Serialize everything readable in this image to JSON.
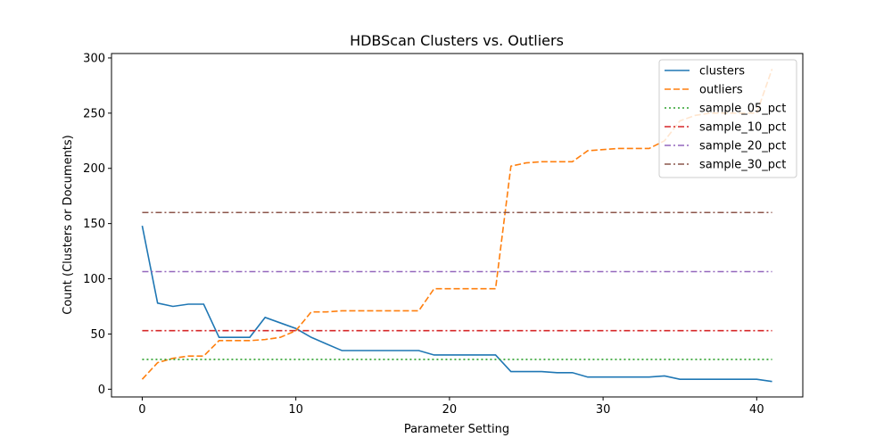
{
  "chart_data": {
    "type": "line",
    "title": "HDBScan Clusters vs. Outliers",
    "xlabel": "Parameter Setting",
    "ylabel": "Count (Clusters or Documents)",
    "xlim": [
      -2,
      43
    ],
    "ylim": [
      -7,
      304
    ],
    "xticks": [
      0,
      10,
      20,
      30,
      40
    ],
    "yticks": [
      0,
      50,
      100,
      150,
      200,
      250,
      300
    ],
    "legend_position": "top-right",
    "grid": false,
    "x": [
      0,
      1,
      2,
      3,
      4,
      5,
      6,
      7,
      8,
      9,
      10,
      11,
      12,
      13,
      14,
      15,
      16,
      17,
      18,
      19,
      20,
      21,
      22,
      23,
      24,
      25,
      26,
      27,
      28,
      29,
      30,
      31,
      32,
      33,
      34,
      35,
      36,
      37,
      38,
      39,
      40,
      41
    ],
    "series": [
      {
        "name": "clusters",
        "color": "#1f77b4",
        "dash": "solid",
        "values": [
          148,
          78,
          75,
          77,
          77,
          47,
          47,
          47,
          65,
          60,
          55,
          47,
          41,
          35,
          35,
          35,
          35,
          35,
          35,
          31,
          31,
          31,
          31,
          31,
          16,
          16,
          16,
          15,
          15,
          11,
          11,
          11,
          11,
          11,
          12,
          9,
          9,
          9,
          9,
          9,
          9,
          7
        ]
      },
      {
        "name": "outliers",
        "color": "#ff7f0e",
        "dash": "dashed",
        "values": [
          9,
          24,
          28,
          30,
          30,
          44,
          44,
          44,
          45,
          47,
          53,
          70,
          70,
          71,
          71,
          71,
          71,
          71,
          71,
          91,
          91,
          91,
          91,
          91,
          202,
          205,
          206,
          206,
          206,
          216,
          217,
          218,
          218,
          218,
          225,
          243,
          248,
          250,
          250,
          250,
          250,
          290
        ]
      },
      {
        "name": "sample_05_pct",
        "color": "#2ca02c",
        "dash": "dotted",
        "values": [
          27,
          27,
          27,
          27,
          27,
          27,
          27,
          27,
          27,
          27,
          27,
          27,
          27,
          27,
          27,
          27,
          27,
          27,
          27,
          27,
          27,
          27,
          27,
          27,
          27,
          27,
          27,
          27,
          27,
          27,
          27,
          27,
          27,
          27,
          27,
          27,
          27,
          27,
          27,
          27,
          27,
          27
        ]
      },
      {
        "name": "sample_10_pct",
        "color": "#d62728",
        "dash": "dashdot",
        "values": [
          53,
          53,
          53,
          53,
          53,
          53,
          53,
          53,
          53,
          53,
          53,
          53,
          53,
          53,
          53,
          53,
          53,
          53,
          53,
          53,
          53,
          53,
          53,
          53,
          53,
          53,
          53,
          53,
          53,
          53,
          53,
          53,
          53,
          53,
          53,
          53,
          53,
          53,
          53,
          53,
          53,
          53
        ]
      },
      {
        "name": "sample_20_pct",
        "color": "#9467bd",
        "dash": "dashdot",
        "values": [
          106.5,
          106.5,
          106.5,
          106.5,
          106.5,
          106.5,
          106.5,
          106.5,
          106.5,
          106.5,
          106.5,
          106.5,
          106.5,
          106.5,
          106.5,
          106.5,
          106.5,
          106.5,
          106.5,
          106.5,
          106.5,
          106.5,
          106.5,
          106.5,
          106.5,
          106.5,
          106.5,
          106.5,
          106.5,
          106.5,
          106.5,
          106.5,
          106.5,
          106.5,
          106.5,
          106.5,
          106.5,
          106.5,
          106.5,
          106.5,
          106.5,
          106.5
        ]
      },
      {
        "name": "sample_30_pct",
        "color": "#8c564b",
        "dash": "dashdot",
        "values": [
          160,
          160,
          160,
          160,
          160,
          160,
          160,
          160,
          160,
          160,
          160,
          160,
          160,
          160,
          160,
          160,
          160,
          160,
          160,
          160,
          160,
          160,
          160,
          160,
          160,
          160,
          160,
          160,
          160,
          160,
          160,
          160,
          160,
          160,
          160,
          160,
          160,
          160,
          160,
          160,
          160,
          160
        ]
      }
    ]
  }
}
